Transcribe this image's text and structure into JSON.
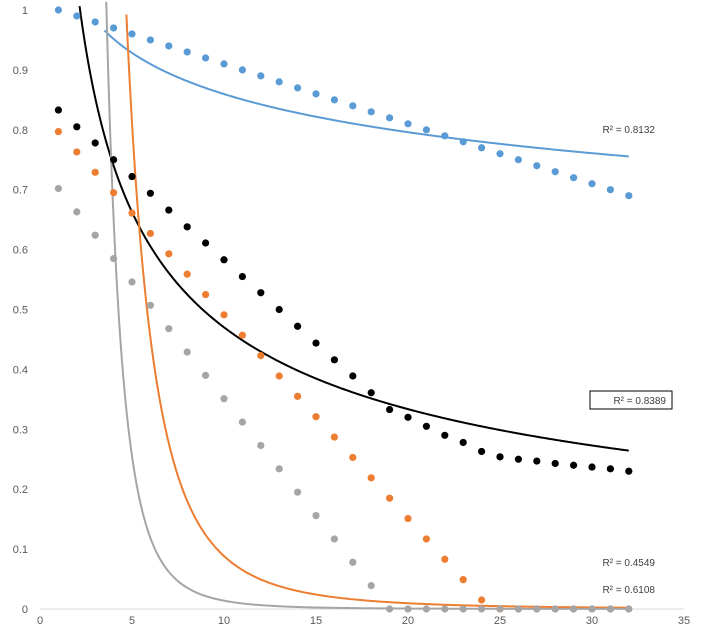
{
  "chart_data": {
    "type": "scatter",
    "title": "",
    "xlabel": "",
    "ylabel": "",
    "xlim": [
      0,
      35
    ],
    "ylim": [
      0,
      1
    ],
    "x_ticks": [
      0,
      5,
      10,
      15,
      20,
      25,
      30,
      35
    ],
    "y_ticks": [
      0,
      0.1,
      0.2,
      0.3,
      0.4,
      0.5,
      0.6,
      0.7,
      0.8,
      0.9,
      1
    ],
    "grid": false,
    "legend": "none",
    "series": [
      {
        "color": "#5b9bd5",
        "x": [
          1,
          2,
          3,
          4,
          5,
          6,
          7,
          8,
          9,
          10,
          11,
          12,
          13,
          14,
          15,
          16,
          17,
          18,
          19,
          20,
          21,
          22,
          23,
          24,
          25,
          26,
          27,
          28,
          29,
          30,
          31,
          32
        ],
        "y": [
          1.0,
          0.99,
          0.98,
          0.97,
          0.96,
          0.95,
          0.94,
          0.93,
          0.92,
          0.91,
          0.9,
          0.89,
          0.88,
          0.87,
          0.86,
          0.85,
          0.84,
          0.83,
          0.82,
          0.81,
          0.8,
          0.79,
          0.78,
          0.77,
          0.76,
          0.75,
          0.74,
          0.73,
          0.72,
          0.71,
          0.7,
          0.69
        ],
        "trendline": {
          "type": "power",
          "a": 1.11,
          "b": -0.111,
          "x_start": 3.5,
          "x_end": 32
        },
        "r2_label": "R² = 0.8132",
        "r2_boxed": false
      },
      {
        "color": "#000000",
        "x": [
          1,
          2,
          3,
          4,
          5,
          6,
          7,
          8,
          9,
          10,
          11,
          12,
          13,
          14,
          15,
          16,
          17,
          18,
          19,
          20,
          21,
          22,
          23,
          24,
          25,
          26,
          27,
          28,
          29,
          30,
          31,
          32
        ],
        "y": [
          0.833,
          0.805,
          0.778,
          0.75,
          0.722,
          0.694,
          0.666,
          0.638,
          0.611,
          0.583,
          0.555,
          0.528,
          0.5,
          0.472,
          0.444,
          0.416,
          0.389,
          0.361,
          0.333,
          0.32,
          0.305,
          0.29,
          0.278,
          0.263,
          0.254,
          0.25,
          0.247,
          0.243,
          0.24,
          0.237,
          0.234,
          0.23
        ],
        "trendline": {
          "type": "power",
          "a": 1.47,
          "b": -0.495,
          "x_start": 2,
          "x_end": 32
        },
        "r2_label": "R² = 0.8389",
        "r2_boxed": true
      },
      {
        "color": "#ed7d31",
        "x": [
          1,
          2,
          3,
          4,
          5,
          6,
          7,
          8,
          9,
          10,
          11,
          12,
          13,
          14,
          15,
          16,
          17,
          18,
          19,
          20,
          21,
          22,
          23,
          24,
          25,
          26,
          27,
          28,
          29,
          30,
          31,
          32
        ],
        "y": [
          0.797,
          0.763,
          0.729,
          0.695,
          0.661,
          0.627,
          0.593,
          0.559,
          0.525,
          0.491,
          0.457,
          0.423,
          0.389,
          0.355,
          0.321,
          0.287,
          0.253,
          0.219,
          0.185,
          0.151,
          0.117,
          0.083,
          0.049,
          0.015,
          0,
          0,
          0,
          0,
          0,
          0,
          0,
          0
        ],
        "trendline": {
          "type": "power",
          "a": 140,
          "b": -3.2,
          "x_start": 4.35,
          "x_end": 32
        },
        "r2_label": "R² = 0.4549",
        "r2_boxed": false
      },
      {
        "color": "#a5a5a5",
        "x": [
          1,
          2,
          3,
          4,
          5,
          6,
          7,
          8,
          9,
          10,
          11,
          12,
          13,
          14,
          15,
          16,
          17,
          18,
          19,
          20,
          21,
          22,
          23,
          24,
          25,
          26,
          27,
          28,
          29,
          30,
          31,
          32
        ],
        "y": [
          0.702,
          0.663,
          0.624,
          0.585,
          0.546,
          0.507,
          0.468,
          0.429,
          0.39,
          0.351,
          0.312,
          0.273,
          0.234,
          0.195,
          0.156,
          0.117,
          0.078,
          0.039,
          0,
          0,
          0,
          0,
          0,
          0,
          0,
          0,
          0,
          0,
          0,
          0,
          0,
          0
        ],
        "trendline": {
          "type": "power",
          "a": 220,
          "b": -4.2,
          "x_start": 3.6,
          "x_end": 32
        },
        "r2_label": "R² = 0.6108",
        "r2_boxed": false
      }
    ]
  }
}
